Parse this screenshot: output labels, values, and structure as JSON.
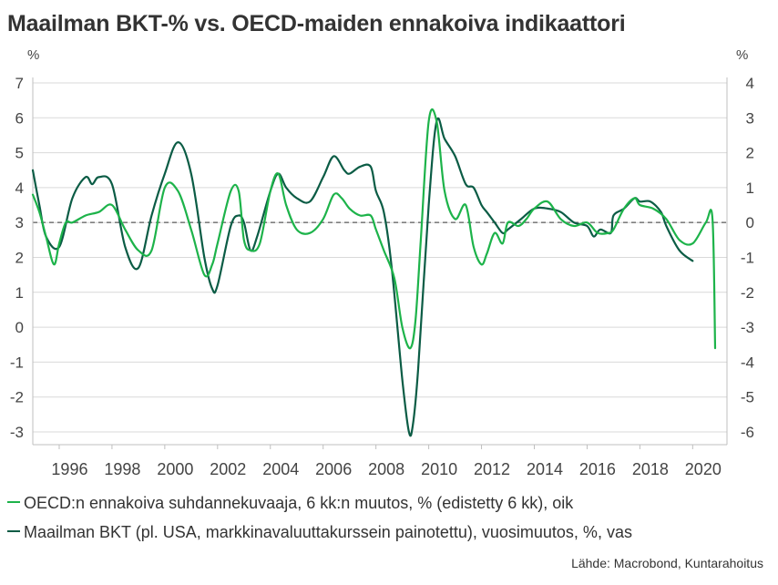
{
  "title": "Maailman BKT-% vs. OECD-maiden ennakoiva indikaattori",
  "source": "Lähde: Macrobond, Kuntarahoitus",
  "colors": {
    "oecd": "#1db34a",
    "gdp": "#0b5c45",
    "grid": "#d9d9d9",
    "zero": "#7f7f7f"
  },
  "chart_data": {
    "type": "line",
    "left_axis": {
      "unit": "%",
      "ylim": [
        -3,
        7
      ],
      "ticks": [
        "-3",
        "-2",
        "-1",
        "0",
        "1",
        "2",
        "3",
        "4",
        "5",
        "6",
        "7"
      ]
    },
    "right_axis": {
      "unit": "%",
      "ylim": [
        -6,
        4
      ],
      "ticks": [
        "-6",
        "-5",
        "-4",
        "-3",
        "-2",
        "-1",
        "0",
        "1",
        "2",
        "3",
        "4"
      ]
    },
    "x_ticks": [
      "1996",
      "1998",
      "2000",
      "2002",
      "2004",
      "2006",
      "2008",
      "2010",
      "2012",
      "2014",
      "2016",
      "2018",
      "2020"
    ],
    "xlim": [
      1995.0,
      2021.3
    ],
    "reference_line": {
      "axis": "right",
      "value": 0,
      "style": "dashed"
    },
    "grid": "horizontal",
    "series": [
      {
        "name": "OECD:n ennakoiva suhdannekuvaaja, 6 kk:n muutos, % (edistetty 6 kk), oik",
        "axis": "right",
        "x": [
          1995.0,
          1995.25,
          1995.5,
          1995.8,
          1996.0,
          1996.25,
          1996.5,
          1997.0,
          1997.5,
          1998.0,
          1998.5,
          1999.0,
          1999.5,
          2000.0,
          2000.5,
          2001.0,
          2001.5,
          2001.8,
          2002.0,
          2002.5,
          2002.8,
          2003.0,
          2003.25,
          2003.6,
          2004.0,
          2004.3,
          2004.6,
          2005.0,
          2005.5,
          2006.0,
          2006.4,
          2006.7,
          2007.0,
          2007.4,
          2007.8,
          2008.0,
          2008.3,
          2008.7,
          2009.0,
          2009.3,
          2009.5,
          2009.7,
          2010.0,
          2010.3,
          2010.6,
          2011.0,
          2011.4,
          2011.7,
          2012.0,
          2012.2,
          2012.5,
          2012.8,
          2013.0,
          2013.4,
          2013.7,
          2014.0,
          2014.5,
          2015.0,
          2015.5,
          2016.0,
          2016.4,
          2016.8,
          2017.0,
          2017.4,
          2017.8,
          2018.0,
          2018.5,
          2019.0,
          2019.5,
          2020.0,
          2020.5,
          2020.75,
          2020.85
        ],
        "y": [
          0.8,
          0.3,
          -0.4,
          -1.2,
          -0.6,
          0.0,
          0.0,
          0.2,
          0.3,
          0.5,
          -0.2,
          -0.8,
          -0.8,
          1.0,
          0.9,
          -0.2,
          -1.5,
          -1.2,
          -0.6,
          0.9,
          0.9,
          -0.5,
          -0.8,
          -0.6,
          0.9,
          1.4,
          0.5,
          -0.2,
          -0.3,
          0.1,
          0.8,
          0.7,
          0.4,
          0.2,
          0.2,
          -0.2,
          -0.8,
          -1.6,
          -3.0,
          -3.6,
          -2.8,
          -0.5,
          2.9,
          2.9,
          0.9,
          0.1,
          0.5,
          -0.7,
          -1.2,
          -0.9,
          -0.3,
          -0.6,
          0.0,
          -0.1,
          0.1,
          0.4,
          0.6,
          0.1,
          -0.1,
          0.0,
          -0.3,
          -0.3,
          -0.2,
          0.4,
          0.7,
          0.5,
          0.4,
          0.1,
          -0.5,
          -0.6,
          0.0,
          0.1,
          -3.6
        ]
      },
      {
        "name": "Maailman BKT (pl. USA, markkinavaluuttakurssein painotettu), vuosimuutos, %, vas",
        "axis": "left",
        "x": [
          1995.0,
          1995.25,
          1995.5,
          1996.0,
          1996.5,
          1997.0,
          1997.25,
          1997.5,
          1998.0,
          1998.5,
          1999.0,
          1999.5,
          2000.0,
          2000.5,
          2001.0,
          2001.5,
          2001.8,
          2002.0,
          2002.5,
          2002.8,
          2003.0,
          2003.25,
          2003.5,
          2004.0,
          2004.3,
          2004.6,
          2005.0,
          2005.5,
          2006.0,
          2006.4,
          2006.8,
          2007.0,
          2007.4,
          2007.8,
          2008.0,
          2008.3,
          2008.6,
          2009.0,
          2009.25,
          2009.4,
          2009.6,
          2010.0,
          2010.3,
          2010.6,
          2011.0,
          2011.4,
          2011.7,
          2012.0,
          2012.2,
          2012.5,
          2012.8,
          2013.0,
          2013.5,
          2014.0,
          2014.5,
          2015.0,
          2015.5,
          2016.0,
          2016.25,
          2016.5,
          2016.9,
          2017.0,
          2017.4,
          2017.8,
          2018.0,
          2018.4,
          2018.8,
          2019.0,
          2019.5,
          2020.0
        ],
        "y": [
          4.5,
          3.5,
          2.6,
          2.3,
          3.7,
          4.3,
          4.1,
          4.3,
          4.1,
          2.3,
          1.7,
          3.2,
          4.4,
          5.3,
          4.4,
          2.0,
          1.1,
          1.2,
          2.9,
          3.2,
          3.0,
          2.2,
          2.6,
          3.9,
          4.4,
          4.0,
          3.7,
          3.6,
          4.3,
          4.9,
          4.5,
          4.4,
          4.6,
          4.6,
          3.9,
          3.3,
          1.7,
          -1.5,
          -3.0,
          -2.8,
          -1.2,
          3.5,
          5.9,
          5.4,
          4.9,
          4.1,
          4.0,
          3.5,
          3.3,
          3.0,
          2.7,
          2.8,
          3.1,
          3.4,
          3.4,
          3.3,
          3.0,
          2.9,
          2.6,
          2.8,
          2.7,
          3.2,
          3.4,
          3.7,
          3.6,
          3.6,
          3.3,
          2.9,
          2.2,
          1.9
        ]
      }
    ]
  }
}
